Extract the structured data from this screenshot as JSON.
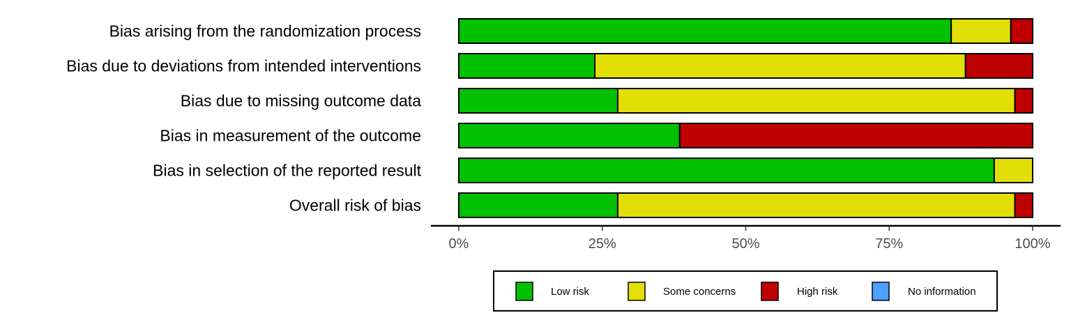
{
  "chart_data": {
    "type": "bar",
    "orientation": "horizontal",
    "stacked": true,
    "title": "",
    "xlabel": "",
    "ylabel": "",
    "xlim": [
      0,
      100
    ],
    "grid": false,
    "legend_position": "bottom",
    "categories": [
      "Bias arising from the randomization process",
      "Bias due to deviations from intended interventions",
      "Bias due to missing outcome data",
      "Bias in measurement of the outcome",
      "Bias in selection of the reported result",
      "Overall risk of bias"
    ],
    "x_ticks": [
      0,
      25,
      50,
      75,
      100
    ],
    "x_tick_labels": [
      "0%",
      "25%",
      "50%",
      "75%",
      "100%"
    ],
    "series": [
      {
        "name": "Low risk",
        "color": "#02c100",
        "values": [
          85.8,
          23.7,
          27.7,
          38.5,
          93.3,
          27.7
        ]
      },
      {
        "name": "Some concerns",
        "color": "#e2df07",
        "values": [
          10.4,
          64.6,
          69.2,
          0,
          6.7,
          69.2
        ]
      },
      {
        "name": "High risk",
        "color": "#bf0000",
        "values": [
          3.8,
          11.7,
          3.1,
          61.5,
          0,
          3.1
        ]
      },
      {
        "name": "No information",
        "color": "#4ea1ff",
        "values": [
          0,
          0,
          0,
          0,
          0,
          0
        ]
      }
    ]
  }
}
